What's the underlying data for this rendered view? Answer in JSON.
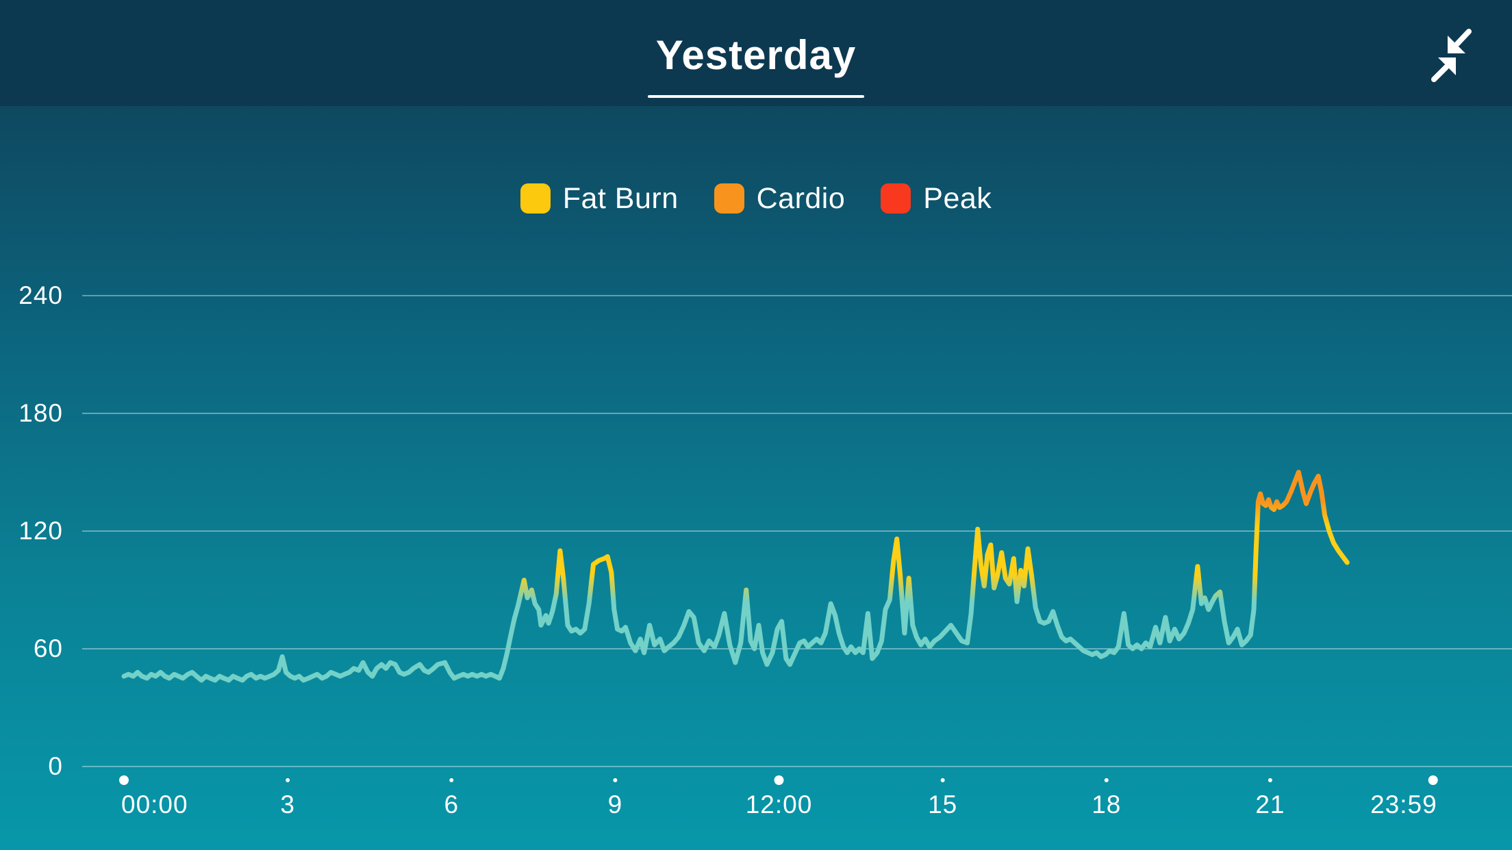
{
  "header": {
    "title": "Yesterday",
    "collapse_icon": "collapse-arrows-icon"
  },
  "legend": {
    "items": [
      {
        "label": "Fat Burn",
        "color": "#fcc90e"
      },
      {
        "label": "Cardio",
        "color": "#f8941d"
      },
      {
        "label": "Peak",
        "color": "#f9391d"
      }
    ]
  },
  "colors": {
    "header_bg": "#0d3950",
    "bg_top": "#0d3c53",
    "bg_bottom": "#0897aa",
    "line_default": "#73d1c8",
    "fat_burn": "#fdd017",
    "cardio": "#f8941d",
    "peak": "#f9391d",
    "gridline": "rgba(255,255,255,0.5)",
    "text": "#ffffff"
  },
  "chart_data": {
    "type": "line",
    "title": "Yesterday",
    "xlabel": "",
    "ylabel": "",
    "grid": true,
    "legend_position": "top-center",
    "ylim": [
      0,
      240
    ],
    "yticks": [
      {
        "value": 240,
        "label": "240"
      },
      {
        "value": 180,
        "label": "180"
      },
      {
        "value": 120,
        "label": "120"
      },
      {
        "value": 60,
        "label": "60"
      },
      {
        "value": 0,
        "label": "0"
      }
    ],
    "xticks": [
      {
        "hour": 0,
        "label": "00:00",
        "major": true,
        "align": "left"
      },
      {
        "hour": 3,
        "label": "3",
        "major": false,
        "align": "center"
      },
      {
        "hour": 6,
        "label": "6",
        "major": false,
        "align": "center"
      },
      {
        "hour": 9,
        "label": "9",
        "major": false,
        "align": "center"
      },
      {
        "hour": 12,
        "label": "12:00",
        "major": true,
        "align": "center"
      },
      {
        "hour": 15,
        "label": "15",
        "major": false,
        "align": "center"
      },
      {
        "hour": 18,
        "label": "18",
        "major": false,
        "align": "center"
      },
      {
        "hour": 21,
        "label": "21",
        "major": false,
        "align": "center"
      },
      {
        "hour": 23.983,
        "label": "23:59",
        "major": true,
        "align": "right"
      }
    ],
    "zones": {
      "fat_burn_min_bpm": 90,
      "cardio_min_bpm": 127,
      "colors": {
        "below": "#73d1c8",
        "fat_burn": "#fdd017",
        "cardio": "#f8941d",
        "peak": "#f9391d"
      }
    },
    "series": [
      {
        "name": "heart_rate_bpm",
        "points": [
          [
            0.0,
            46
          ],
          [
            0.08,
            47
          ],
          [
            0.17,
            46
          ],
          [
            0.25,
            48
          ],
          [
            0.33,
            46
          ],
          [
            0.42,
            45
          ],
          [
            0.5,
            47
          ],
          [
            0.58,
            46
          ],
          [
            0.67,
            48
          ],
          [
            0.75,
            46
          ],
          [
            0.83,
            45
          ],
          [
            0.92,
            47
          ],
          [
            1.0,
            46
          ],
          [
            1.08,
            45
          ],
          [
            1.17,
            47
          ],
          [
            1.25,
            48
          ],
          [
            1.33,
            46
          ],
          [
            1.42,
            44
          ],
          [
            1.5,
            46
          ],
          [
            1.58,
            45
          ],
          [
            1.67,
            44
          ],
          [
            1.75,
            46
          ],
          [
            1.83,
            45
          ],
          [
            1.92,
            44
          ],
          [
            2.0,
            46
          ],
          [
            2.08,
            45
          ],
          [
            2.17,
            44
          ],
          [
            2.25,
            46
          ],
          [
            2.33,
            47
          ],
          [
            2.42,
            45
          ],
          [
            2.5,
            46
          ],
          [
            2.58,
            45
          ],
          [
            2.67,
            46
          ],
          [
            2.75,
            47
          ],
          [
            2.83,
            49
          ],
          [
            2.9,
            56
          ],
          [
            2.97,
            48
          ],
          [
            3.05,
            46
          ],
          [
            3.13,
            45
          ],
          [
            3.21,
            46
          ],
          [
            3.29,
            44
          ],
          [
            3.38,
            45
          ],
          [
            3.46,
            46
          ],
          [
            3.54,
            47
          ],
          [
            3.63,
            45
          ],
          [
            3.71,
            46
          ],
          [
            3.79,
            48
          ],
          [
            3.88,
            47
          ],
          [
            3.96,
            46
          ],
          [
            4.04,
            47
          ],
          [
            4.13,
            48
          ],
          [
            4.21,
            50
          ],
          [
            4.3,
            49
          ],
          [
            4.38,
            53
          ],
          [
            4.47,
            48
          ],
          [
            4.55,
            46
          ],
          [
            4.63,
            50
          ],
          [
            4.72,
            52
          ],
          [
            4.8,
            50
          ],
          [
            4.88,
            53
          ],
          [
            4.97,
            52
          ],
          [
            5.05,
            48
          ],
          [
            5.13,
            47
          ],
          [
            5.22,
            48
          ],
          [
            5.3,
            50
          ],
          [
            5.42,
            52
          ],
          [
            5.5,
            49
          ],
          [
            5.58,
            48
          ],
          [
            5.67,
            50
          ],
          [
            5.75,
            52
          ],
          [
            5.88,
            53
          ],
          [
            5.97,
            48
          ],
          [
            6.05,
            45
          ],
          [
            6.13,
            46
          ],
          [
            6.22,
            47
          ],
          [
            6.3,
            46
          ],
          [
            6.38,
            47
          ],
          [
            6.47,
            46
          ],
          [
            6.55,
            47
          ],
          [
            6.63,
            46
          ],
          [
            6.72,
            47
          ],
          [
            6.8,
            46
          ],
          [
            6.88,
            45
          ],
          [
            6.95,
            50
          ],
          [
            7.02,
            58
          ],
          [
            7.08,
            66
          ],
          [
            7.15,
            75
          ],
          [
            7.22,
            82
          ],
          [
            7.33,
            95
          ],
          [
            7.39,
            86
          ],
          [
            7.47,
            90
          ],
          [
            7.53,
            83
          ],
          [
            7.6,
            80
          ],
          [
            7.64,
            72
          ],
          [
            7.73,
            77
          ],
          [
            7.78,
            73
          ],
          [
            7.85,
            79
          ],
          [
            7.92,
            88
          ],
          [
            7.99,
            110
          ],
          [
            8.05,
            96
          ],
          [
            8.13,
            72
          ],
          [
            8.2,
            69
          ],
          [
            8.28,
            70
          ],
          [
            8.36,
            68
          ],
          [
            8.44,
            70
          ],
          [
            8.52,
            83
          ],
          [
            8.6,
            103
          ],
          [
            8.7,
            105
          ],
          [
            8.8,
            106
          ],
          [
            8.86,
            107
          ],
          [
            8.93,
            99
          ],
          [
            8.98,
            80
          ],
          [
            9.04,
            70
          ],
          [
            9.12,
            69
          ],
          [
            9.19,
            71
          ],
          [
            9.28,
            63
          ],
          [
            9.37,
            59
          ],
          [
            9.46,
            65
          ],
          [
            9.53,
            58
          ],
          [
            9.63,
            72
          ],
          [
            9.72,
            62
          ],
          [
            9.82,
            65
          ],
          [
            9.9,
            59
          ],
          [
            9.98,
            61
          ],
          [
            10.07,
            63
          ],
          [
            10.16,
            66
          ],
          [
            10.26,
            72
          ],
          [
            10.35,
            79
          ],
          [
            10.44,
            76
          ],
          [
            10.53,
            63
          ],
          [
            10.63,
            59
          ],
          [
            10.72,
            64
          ],
          [
            10.82,
            61
          ],
          [
            10.9,
            67
          ],
          [
            11.0,
            78
          ],
          [
            11.1,
            62
          ],
          [
            11.2,
            53
          ],
          [
            11.3,
            63
          ],
          [
            11.4,
            90
          ],
          [
            11.48,
            64
          ],
          [
            11.55,
            60
          ],
          [
            11.63,
            72
          ],
          [
            11.7,
            58
          ],
          [
            11.78,
            52
          ],
          [
            11.88,
            58
          ],
          [
            11.97,
            70
          ],
          [
            12.05,
            74
          ],
          [
            12.13,
            55
          ],
          [
            12.2,
            52
          ],
          [
            12.3,
            58
          ],
          [
            12.38,
            63
          ],
          [
            12.46,
            64
          ],
          [
            12.53,
            61
          ],
          [
            12.61,
            63
          ],
          [
            12.69,
            65
          ],
          [
            12.77,
            63
          ],
          [
            12.85,
            68
          ],
          [
            12.95,
            83
          ],
          [
            13.03,
            77
          ],
          [
            13.1,
            68
          ],
          [
            13.18,
            61
          ],
          [
            13.25,
            58
          ],
          [
            13.32,
            61
          ],
          [
            13.4,
            58
          ],
          [
            13.47,
            60
          ],
          [
            13.54,
            58
          ],
          [
            13.63,
            78
          ],
          [
            13.71,
            55
          ],
          [
            13.8,
            58
          ],
          [
            13.88,
            64
          ],
          [
            13.95,
            80
          ],
          [
            14.03,
            85
          ],
          [
            14.1,
            105
          ],
          [
            14.16,
            116
          ],
          [
            14.22,
            98
          ],
          [
            14.3,
            68
          ],
          [
            14.38,
            96
          ],
          [
            14.45,
            72
          ],
          [
            14.52,
            66
          ],
          [
            14.6,
            62
          ],
          [
            14.68,
            65
          ],
          [
            14.76,
            61
          ],
          [
            14.85,
            64
          ],
          [
            14.95,
            66
          ],
          [
            15.05,
            69
          ],
          [
            15.15,
            72
          ],
          [
            15.25,
            68
          ],
          [
            15.35,
            64
          ],
          [
            15.45,
            63
          ],
          [
            15.52,
            78
          ],
          [
            15.58,
            100
          ],
          [
            15.64,
            121
          ],
          [
            15.7,
            103
          ],
          [
            15.76,
            92
          ],
          [
            15.82,
            108
          ],
          [
            15.88,
            113
          ],
          [
            15.94,
            91
          ],
          [
            16.0,
            97
          ],
          [
            16.08,
            109
          ],
          [
            16.15,
            96
          ],
          [
            16.22,
            93
          ],
          [
            16.3,
            106
          ],
          [
            16.36,
            84
          ],
          [
            16.43,
            100
          ],
          [
            16.49,
            92
          ],
          [
            16.56,
            111
          ],
          [
            16.63,
            97
          ],
          [
            16.7,
            81
          ],
          [
            16.78,
            74
          ],
          [
            16.86,
            73
          ],
          [
            16.94,
            74
          ],
          [
            17.02,
            79
          ],
          [
            17.1,
            72
          ],
          [
            17.18,
            66
          ],
          [
            17.26,
            64
          ],
          [
            17.34,
            65
          ],
          [
            17.42,
            63
          ],
          [
            17.5,
            61
          ],
          [
            17.58,
            59
          ],
          [
            17.66,
            58
          ],
          [
            17.74,
            57
          ],
          [
            17.82,
            58
          ],
          [
            17.9,
            56
          ],
          [
            17.98,
            57
          ],
          [
            18.06,
            59
          ],
          [
            18.14,
            58
          ],
          [
            18.22,
            61
          ],
          [
            18.32,
            78
          ],
          [
            18.4,
            62
          ],
          [
            18.48,
            60
          ],
          [
            18.56,
            62
          ],
          [
            18.64,
            60
          ],
          [
            18.72,
            63
          ],
          [
            18.8,
            61
          ],
          [
            18.9,
            71
          ],
          [
            18.98,
            63
          ],
          [
            19.08,
            76
          ],
          [
            19.16,
            64
          ],
          [
            19.25,
            70
          ],
          [
            19.33,
            65
          ],
          [
            19.42,
            68
          ],
          [
            19.5,
            73
          ],
          [
            19.58,
            80
          ],
          [
            19.67,
            102
          ],
          [
            19.74,
            83
          ],
          [
            19.8,
            86
          ],
          [
            19.87,
            80
          ],
          [
            19.94,
            84
          ],
          [
            20.0,
            87
          ],
          [
            20.08,
            89
          ],
          [
            20.16,
            74
          ],
          [
            20.24,
            63
          ],
          [
            20.32,
            66
          ],
          [
            20.4,
            70
          ],
          [
            20.48,
            62
          ],
          [
            20.56,
            64
          ],
          [
            20.64,
            67
          ],
          [
            20.7,
            80
          ],
          [
            20.74,
            110
          ],
          [
            20.78,
            135
          ],
          [
            20.82,
            139
          ],
          [
            20.87,
            134
          ],
          [
            20.92,
            133
          ],
          [
            20.97,
            136
          ],
          [
            21.02,
            132
          ],
          [
            21.07,
            131
          ],
          [
            21.12,
            135
          ],
          [
            21.17,
            132
          ],
          [
            21.23,
            133
          ],
          [
            21.3,
            135
          ],
          [
            21.38,
            140
          ],
          [
            21.45,
            145
          ],
          [
            21.52,
            150
          ],
          [
            21.6,
            140
          ],
          [
            21.66,
            134
          ],
          [
            21.74,
            140
          ],
          [
            21.8,
            144
          ],
          [
            21.88,
            148
          ],
          [
            21.94,
            140
          ],
          [
            22.0,
            128
          ],
          [
            22.08,
            120
          ],
          [
            22.16,
            114
          ],
          [
            22.25,
            110
          ],
          [
            22.33,
            107
          ],
          [
            22.41,
            104
          ]
        ]
      }
    ]
  }
}
